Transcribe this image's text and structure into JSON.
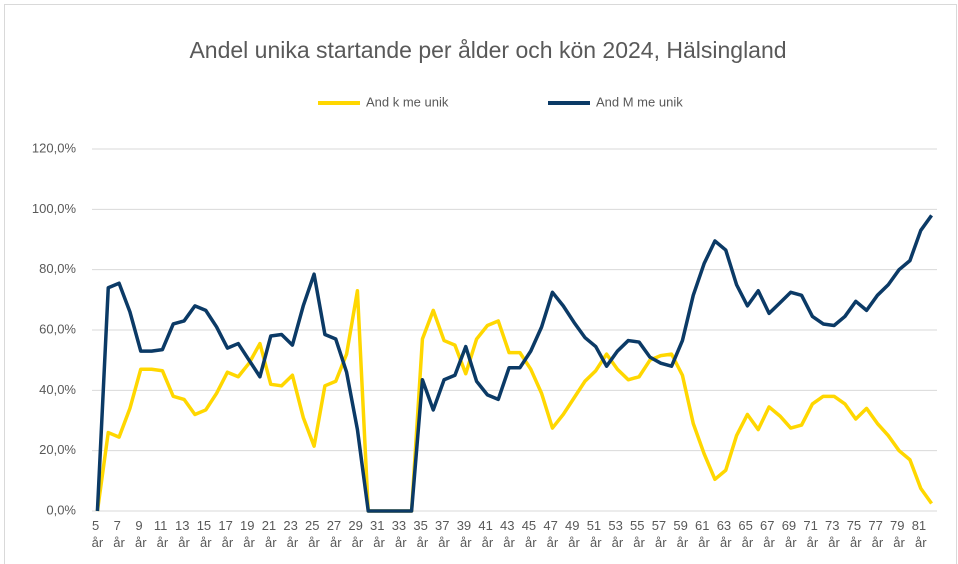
{
  "chart_data": {
    "type": "line",
    "title": "Andel unika startande per ålder och kön 2024, Hälsingland",
    "categories": [
      "5 år",
      null,
      "7 år",
      null,
      "9 år",
      null,
      "11 år",
      null,
      "13 år",
      null,
      "15 år",
      null,
      "17 år",
      null,
      "19 år",
      null,
      "21 år",
      null,
      "23 år",
      null,
      "25 år",
      null,
      "27 år",
      null,
      "29 år",
      null,
      "31 år",
      null,
      "33 år",
      null,
      "35 år",
      null,
      "37 år",
      null,
      "39 år",
      null,
      "41 år",
      null,
      "43 år",
      null,
      "45 år",
      null,
      "47 år",
      null,
      "49 år",
      null,
      "51 år",
      null,
      "53 år",
      null,
      "55 år",
      null,
      "57 år",
      null,
      "59 år",
      null,
      "61 år",
      null,
      "63 år",
      null,
      "65 år",
      null,
      "67 år",
      null,
      "69 år",
      null,
      "71 år",
      null,
      "73 år",
      null,
      "75 år",
      null,
      "77 år",
      null,
      "79 år",
      null,
      "81 år",
      null
    ],
    "series": [
      {
        "name": "And k me unik",
        "color": "#ffd700",
        "values": [
          0,
          26,
          24.5,
          34,
          47,
          47,
          46.5,
          38,
          37,
          32,
          33.5,
          39,
          46,
          44.5,
          49,
          55.5,
          42,
          41.5,
          45,
          31,
          21.5,
          41.5,
          43,
          52,
          73,
          0,
          0,
          0,
          0,
          0,
          57,
          66.5,
          56.5,
          55,
          45.5,
          57,
          61.5,
          63,
          52.5,
          52.5,
          47,
          39,
          27.5,
          32,
          37.5,
          43,
          46.5,
          52,
          47,
          43.5,
          44.5,
          50,
          51.5,
          52,
          45,
          29,
          19,
          10.5,
          13.5,
          25,
          32,
          27,
          34.5,
          31.5,
          27.5,
          28.5,
          35.5,
          38,
          38,
          35.5,
          30.5,
          34,
          29,
          25,
          20,
          17,
          7.5,
          2.5
        ]
      },
      {
        "name": "And M me unik",
        "color": "#0b3a66",
        "values": [
          0,
          74,
          75.5,
          66,
          53,
          53,
          53.5,
          62,
          63,
          68,
          66.5,
          61,
          54,
          55.5,
          50,
          44.5,
          58,
          58.5,
          55,
          68,
          78.5,
          58.5,
          57,
          46,
          27,
          0,
          0,
          0,
          0,
          0,
          43.5,
          33.5,
          43.5,
          45,
          54.5,
          43,
          38.5,
          37,
          47.5,
          47.5,
          53,
          61,
          72.5,
          68,
          62.5,
          57.5,
          54.5,
          48,
          53,
          56.5,
          56,
          51,
          49,
          48,
          56.5,
          71.5,
          82,
          89.5,
          86.5,
          75,
          68,
          73,
          65.5,
          69,
          72.5,
          71.5,
          64.5,
          62,
          61.5,
          64.5,
          69.5,
          66.5,
          71.5,
          75,
          80,
          83,
          93,
          98
        ]
      }
    ],
    "ylim": [
      0,
      120
    ],
    "yticks": [
      {
        "value": 0,
        "label": "0,0%"
      },
      {
        "value": 20,
        "label": "20,0%"
      },
      {
        "value": 40,
        "label": "40,0%"
      },
      {
        "value": 60,
        "label": "60,0%"
      },
      {
        "value": 80,
        "label": "80,0%"
      },
      {
        "value": 100,
        "label": "100,0%"
      },
      {
        "value": 120,
        "label": "120,0%"
      }
    ],
    "grid": true,
    "legend": "top"
  }
}
